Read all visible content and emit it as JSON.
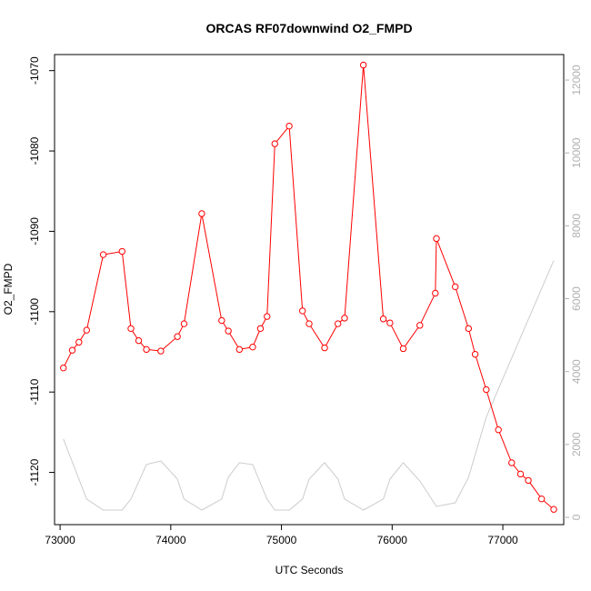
{
  "chart_data": {
    "type": "line",
    "title": "ORCAS RF07downwind O2_FMPD",
    "xlabel": "UTC Seconds",
    "ylabel": "O2_FMPD",
    "xlim": [
      72950,
      77550
    ],
    "ylim": [
      -1126.5,
      -1068
    ],
    "y2lim": [
      -200,
      12700
    ],
    "x_ticks": [
      73000,
      74000,
      75000,
      76000,
      77000
    ],
    "y_ticks": [
      -1070,
      -1080,
      -1090,
      -1100,
      -1110,
      -1120
    ],
    "y2_ticks": [
      0,
      2000,
      4000,
      6000,
      8000,
      10000,
      12000
    ],
    "series": [
      {
        "name": "O2_FMPD",
        "color": "#ff0000",
        "axis": "left",
        "style": "line-points",
        "x": [
          73030,
          73110,
          73170,
          73240,
          73390,
          73560,
          73640,
          73710,
          73780,
          73910,
          74060,
          74120,
          74280,
          74460,
          74520,
          74620,
          74740,
          74810,
          74870,
          74940,
          75070,
          75190,
          75250,
          75390,
          75510,
          75570,
          75740,
          75920,
          75980,
          76100,
          76250,
          76390,
          76400,
          76570,
          76690,
          76750,
          76850,
          76960,
          77080,
          77160,
          77230,
          77350,
          77460
        ],
        "y": [
          -1107.0,
          -1104.8,
          -1103.8,
          -1102.3,
          -1092.9,
          -1092.5,
          -1102.1,
          -1103.6,
          -1104.7,
          -1104.9,
          -1103.1,
          -1101.5,
          -1087.8,
          -1101.1,
          -1102.4,
          -1104.7,
          -1104.4,
          -1102.1,
          -1100.6,
          -1079.1,
          -1076.9,
          -1099.9,
          -1101.5,
          -1104.5,
          -1101.5,
          -1100.8,
          -1069.3,
          -1100.9,
          -1101.4,
          -1104.6,
          -1101.7,
          -1097.7,
          -1090.9,
          -1096.9,
          -1102.1,
          -1105.3,
          -1109.7,
          -1114.7,
          -1118.8,
          -1120.2,
          -1121.0,
          -1123.3,
          -1124.6
        ]
      },
      {
        "name": "secondary",
        "color": "#cccccc",
        "axis": "right",
        "style": "line",
        "x": [
          73030,
          73240,
          73390,
          73560,
          73640,
          73780,
          73910,
          74060,
          74120,
          74280,
          74460,
          74520,
          74620,
          74740,
          74870,
          74940,
          75070,
          75190,
          75250,
          75390,
          75510,
          75570,
          75740,
          75920,
          75980,
          76100,
          76250,
          76400,
          76570,
          76690,
          76850,
          77460
        ],
        "y": [
          2150,
          500,
          200,
          200,
          500,
          1450,
          1550,
          1050,
          500,
          200,
          500,
          1100,
          1500,
          1450,
          500,
          200,
          200,
          500,
          1050,
          1500,
          1050,
          500,
          200,
          500,
          1050,
          1500,
          1000,
          300,
          400,
          1100,
          2750,
          7050
        ]
      }
    ]
  }
}
